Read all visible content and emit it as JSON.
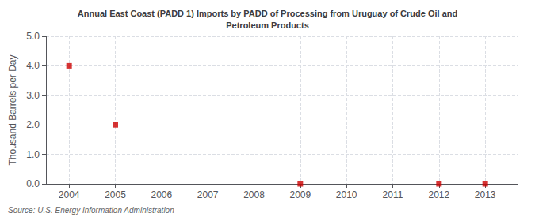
{
  "chart_data": {
    "type": "scatter",
    "title": "Annual East Coast (PADD 1) Imports by PADD of Processing from Uruguay of Crude Oil and\nPetroleum Products",
    "ylabel": "Thousand Barrels per Day",
    "annotations": [
      "Source: U.S. Energy Information Administration"
    ],
    "x": [
      2004,
      2005,
      2009,
      2012,
      2013
    ],
    "values": [
      4.0,
      2.0,
      0.0,
      0.0,
      0.0
    ],
    "color": "#cc0000",
    "marker": "square",
    "xlim": [
      2003.5,
      2013.7
    ],
    "ylim": [
      0.0,
      5.0
    ],
    "xticks": [
      2004,
      2005,
      2006,
      2007,
      2008,
      2009,
      2010,
      2011,
      2012,
      2013
    ],
    "yticks": [
      {
        "value": 0,
        "label": "0.0"
      },
      {
        "value": 1,
        "label": "1.0"
      },
      {
        "value": 2,
        "label": "2.0"
      },
      {
        "value": 3,
        "label": "3.0"
      },
      {
        "value": 4,
        "label": "4.0"
      },
      {
        "value": 5,
        "label": "5.0"
      }
    ],
    "grid": true
  }
}
